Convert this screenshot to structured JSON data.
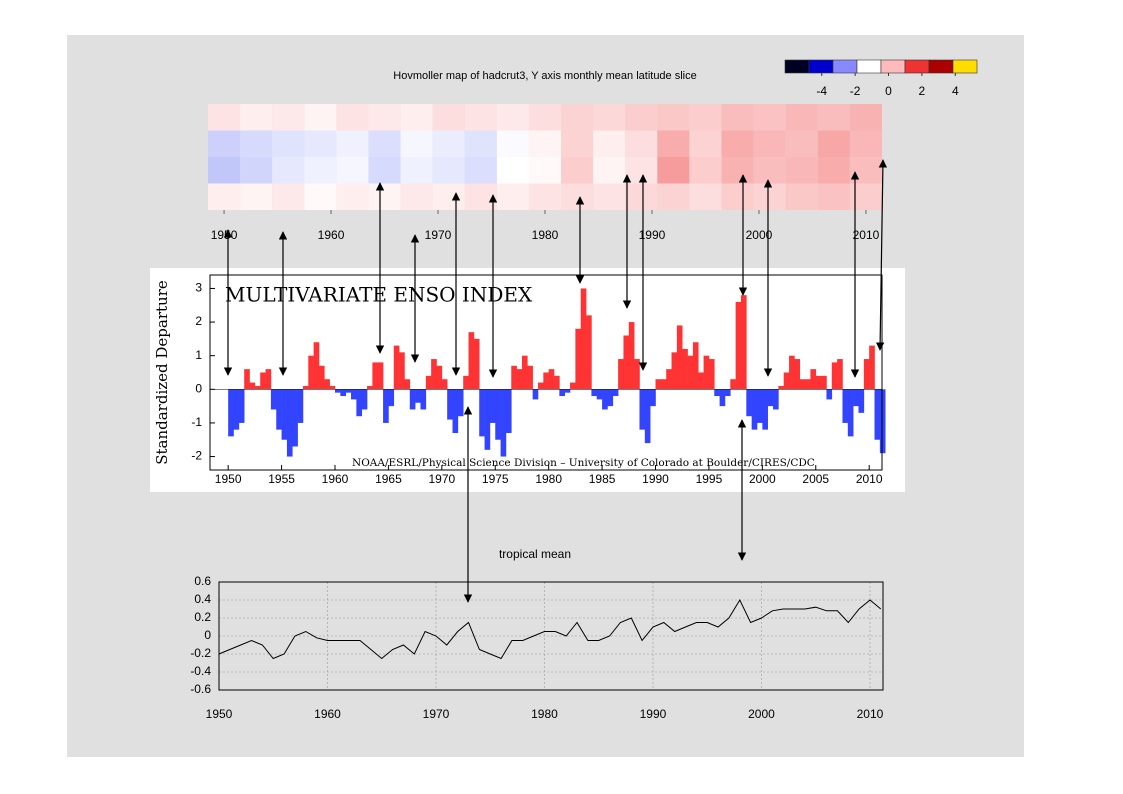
{
  "chart_data": [
    {
      "type": "heatmap",
      "title": "Hovmoller map of hadcrut3, Y axis monthly mean latitude slice",
      "x": [
        1950,
        1953,
        1956,
        1959,
        1962,
        1965,
        1968,
        1971,
        1974,
        1977,
        1980,
        1983,
        1986,
        1989,
        1992,
        1995,
        1998,
        2001,
        2004,
        2007,
        2010
      ],
      "values": [
        [
          0.5,
          0.3,
          0.4,
          0.2,
          0.5,
          0.4,
          0.3,
          0.6,
          0.5,
          0.4,
          0.6,
          0.8,
          0.7,
          0.9,
          1.0,
          0.9,
          1.2,
          1.1,
          1.3,
          1.2,
          1.4
        ],
        [
          -1.0,
          -0.8,
          -0.6,
          -0.5,
          -0.3,
          -0.7,
          -0.2,
          -0.4,
          -0.6,
          -0.1,
          0.2,
          0.8,
          0.3,
          0.6,
          1.5,
          0.8,
          1.5,
          1.3,
          1.2,
          1.6,
          1.3
        ],
        [
          -1.2,
          -0.9,
          -0.5,
          -0.3,
          -0.2,
          -0.8,
          -0.3,
          -0.5,
          -0.7,
          0.0,
          0.1,
          0.9,
          0.2,
          0.5,
          1.8,
          0.9,
          1.4,
          1.2,
          1.3,
          1.5,
          1.2
        ],
        [
          0.3,
          0.2,
          0.4,
          0.1,
          0.3,
          0.2,
          0.4,
          0.3,
          0.5,
          0.3,
          0.5,
          0.6,
          0.5,
          0.7,
          0.8,
          0.6,
          0.9,
          0.8,
          1.0,
          1.1,
          0.9
        ]
      ],
      "xlim": [
        1948.5,
        2011.5
      ],
      "xticks": [
        1950,
        1960,
        1970,
        1980,
        1990,
        2000,
        2010
      ],
      "colorbar": {
        "colors": [
          "#000022",
          "#0000cc",
          "#8888ff",
          "#ffffff",
          "#ffbbbb",
          "#ee3333",
          "#aa0000",
          "#ffdd00"
        ],
        "lim": [
          -6.2,
          5.3
        ],
        "ticks": [
          -4,
          -2,
          0,
          2,
          4
        ]
      }
    },
    {
      "type": "area",
      "title": "MULTIVARIATE ENSO INDEX",
      "ylabel": "Standardized Departure",
      "annotation": "NOAA/ESRL/Physical Science Division – University of Colorado at Boulder/CIRES/CDC",
      "x": [
        1950,
        1950.5,
        1951,
        1951.5,
        1952,
        1952.5,
        1953,
        1953.5,
        1954,
        1954.5,
        1955,
        1955.5,
        1956,
        1956.5,
        1957,
        1957.5,
        1958,
        1958.5,
        1959,
        1959.5,
        1960,
        1960.5,
        1961,
        1961.5,
        1962,
        1962.5,
        1963,
        1963.5,
        1964,
        1964.5,
        1965,
        1965.5,
        1966,
        1966.5,
        1967,
        1967.5,
        1968,
        1968.5,
        1969,
        1969.5,
        1970,
        1970.5,
        1971,
        1971.5,
        1972,
        1972.5,
        1973,
        1973.5,
        1974,
        1974.5,
        1975,
        1975.5,
        1976,
        1976.5,
        1977,
        1977.5,
        1978,
        1978.5,
        1979,
        1979.5,
        1980,
        1980.5,
        1981,
        1981.5,
        1982,
        1982.5,
        1983,
        1983.5,
        1984,
        1984.5,
        1985,
        1985.5,
        1986,
        1986.5,
        1987,
        1987.5,
        1988,
        1988.5,
        1989,
        1989.5,
        1990,
        1990.5,
        1991,
        1991.5,
        1992,
        1992.5,
        1993,
        1993.5,
        1994,
        1994.5,
        1995,
        1995.5,
        1996,
        1996.5,
        1997,
        1997.5,
        1998,
        1998.5,
        1999,
        1999.5,
        2000,
        2000.5,
        2001,
        2001.5,
        2002,
        2002.5,
        2003,
        2003.5,
        2004,
        2004.5,
        2005,
        2005.5,
        2006,
        2006.5,
        2007,
        2007.5,
        2008,
        2008.5,
        2009,
        2009.5,
        2010,
        2010.5,
        2011
      ],
      "values": [
        -1.4,
        -1.2,
        -1.0,
        0.6,
        0.2,
        0.1,
        0.5,
        0.6,
        -0.6,
        -1.2,
        -1.5,
        -2.0,
        -1.7,
        -1.0,
        0.1,
        1.0,
        1.4,
        0.7,
        0.3,
        0.1,
        -0.1,
        -0.2,
        -0.1,
        -0.3,
        -0.8,
        -0.6,
        0.1,
        0.8,
        0.8,
        -1.0,
        -0.5,
        1.3,
        1.1,
        0.3,
        -0.6,
        -0.4,
        -0.6,
        0.4,
        0.9,
        0.7,
        0.3,
        -0.9,
        -1.3,
        -0.8,
        0.4,
        1.7,
        1.5,
        -1.4,
        -1.8,
        -1.0,
        -1.5,
        -2.0,
        -1.3,
        0.7,
        0.6,
        1.0,
        0.7,
        -0.3,
        0.2,
        0.5,
        0.6,
        0.4,
        -0.2,
        -0.1,
        0.2,
        1.8,
        3.0,
        2.2,
        -0.2,
        -0.3,
        -0.6,
        -0.5,
        -0.2,
        0.9,
        1.6,
        2.0,
        0.9,
        -1.2,
        -1.6,
        -0.5,
        0.3,
        0.3,
        0.6,
        1.1,
        1.9,
        1.2,
        1.0,
        1.4,
        0.5,
        1.0,
        0.9,
        -0.2,
        -0.5,
        -0.2,
        0.3,
        2.6,
        2.8,
        -0.8,
        -1.2,
        -1.0,
        -1.2,
        -0.5,
        -0.6,
        0.1,
        0.5,
        1.0,
        0.9,
        0.3,
        0.3,
        0.6,
        0.4,
        0.4,
        -0.3,
        0.8,
        0.9,
        -1.0,
        -1.4,
        -0.5,
        -0.7,
        0.9,
        1.3,
        -1.5,
        -1.9
      ],
      "xlim": [
        1948.3,
        2011.2
      ],
      "ylim": [
        -2.4,
        3.4
      ],
      "xticks": [
        1950,
        1955,
        1960,
        1965,
        1970,
        1975,
        1980,
        1985,
        1990,
        1995,
        2000,
        2005,
        2010
      ],
      "yticks": [
        -2,
        -1,
        0,
        1,
        2,
        3
      ],
      "positive_color": "#ff3333",
      "negative_color": "#3344ff"
    },
    {
      "type": "line",
      "title": "tropical mean",
      "x": [
        1950,
        1951,
        1952,
        1953,
        1954,
        1955,
        1956,
        1957,
        1958,
        1959,
        1960,
        1961,
        1962,
        1963,
        1964,
        1965,
        1966,
        1967,
        1968,
        1969,
        1970,
        1971,
        1972,
        1973,
        1974,
        1975,
        1976,
        1977,
        1978,
        1979,
        1980,
        1981,
        1982,
        1983,
        1984,
        1985,
        1986,
        1987,
        1988,
        1989,
        1990,
        1991,
        1992,
        1993,
        1994,
        1995,
        1996,
        1997,
        1998,
        1999,
        2000,
        2001,
        2002,
        2003,
        2004,
        2005,
        2006,
        2007,
        2008,
        2009,
        2010,
        2011
      ],
      "values": [
        -0.2,
        -0.15,
        -0.1,
        -0.05,
        -0.1,
        -0.25,
        -0.2,
        0.0,
        0.05,
        -0.02,
        -0.05,
        -0.05,
        -0.05,
        -0.05,
        -0.15,
        -0.25,
        -0.15,
        -0.1,
        -0.2,
        0.05,
        0.0,
        -0.1,
        0.05,
        0.15,
        -0.15,
        -0.2,
        -0.25,
        -0.05,
        -0.05,
        0.0,
        0.05,
        0.05,
        0.0,
        0.15,
        -0.05,
        -0.05,
        0.0,
        0.15,
        0.2,
        -0.05,
        0.1,
        0.15,
        0.05,
        0.1,
        0.15,
        0.15,
        0.1,
        0.2,
        0.4,
        0.15,
        0.2,
        0.28,
        0.3,
        0.3,
        0.3,
        0.32,
        0.28,
        0.28,
        0.15,
        0.3,
        0.4,
        0.3
      ],
      "xlim": [
        1950,
        2011.2
      ],
      "ylim": [
        -0.6,
        0.6
      ],
      "xticks": [
        1950,
        1960,
        1970,
        1980,
        1990,
        2000,
        2010
      ],
      "yticks": [
        -0.6,
        -0.4,
        -0.2,
        0,
        0.2,
        0.4,
        0.6
      ],
      "color": "#000000",
      "grid": true
    }
  ]
}
